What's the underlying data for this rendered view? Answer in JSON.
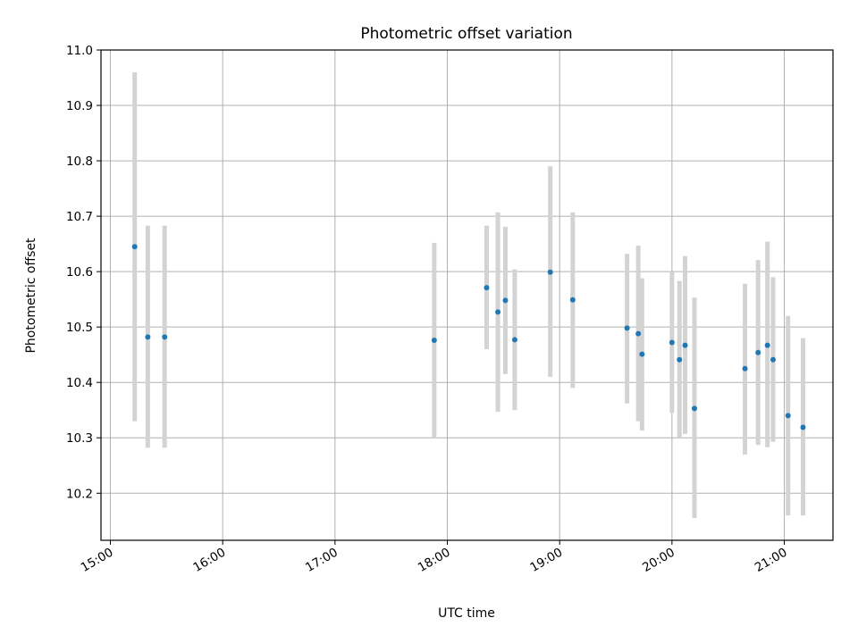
{
  "chart_data": {
    "type": "scatter",
    "title": "Photometric offset variation",
    "xlabel": "UTC time",
    "ylabel": "Photometric offset",
    "x_axis_type": "time",
    "xlim": [
      "14:55",
      "21:26"
    ],
    "ylim": [
      10.115,
      11.0
    ],
    "x_ticks": [
      "15:00",
      "16:00",
      "17:00",
      "18:00",
      "19:00",
      "20:00",
      "21:00"
    ],
    "y_ticks": [
      "10.2",
      "10.3",
      "10.4",
      "10.5",
      "10.6",
      "10.7",
      "10.8",
      "10.9",
      "11.0"
    ],
    "grid": true,
    "errorbar_color": "#d3d3d3",
    "point_color": "#1f77b4",
    "points": [
      {
        "t": "15:13",
        "y": 10.645,
        "ylo": 10.33,
        "yhi": 10.96
      },
      {
        "t": "15:20",
        "y": 10.482,
        "ylo": 10.282,
        "yhi": 10.683
      },
      {
        "t": "15:29",
        "y": 10.482,
        "ylo": 10.282,
        "yhi": 10.683
      },
      {
        "t": "17:53",
        "y": 10.476,
        "ylo": 10.3,
        "yhi": 10.652
      },
      {
        "t": "18:21",
        "y": 10.571,
        "ylo": 10.46,
        "yhi": 10.683
      },
      {
        "t": "18:27",
        "y": 10.527,
        "ylo": 10.347,
        "yhi": 10.707
      },
      {
        "t": "18:31",
        "y": 10.548,
        "ylo": 10.415,
        "yhi": 10.681
      },
      {
        "t": "18:36",
        "y": 10.477,
        "ylo": 10.35,
        "yhi": 10.604
      },
      {
        "t": "18:55",
        "y": 10.599,
        "ylo": 10.41,
        "yhi": 10.79
      },
      {
        "t": "19:07",
        "y": 10.549,
        "ylo": 10.39,
        "yhi": 10.707
      },
      {
        "t": "19:36",
        "y": 10.498,
        "ylo": 10.362,
        "yhi": 10.632
      },
      {
        "t": "19:42",
        "y": 10.488,
        "ylo": 10.33,
        "yhi": 10.647
      },
      {
        "t": "19:44",
        "y": 10.451,
        "ylo": 10.313,
        "yhi": 10.588
      },
      {
        "t": "20:00",
        "y": 10.472,
        "ylo": 10.345,
        "yhi": 10.6
      },
      {
        "t": "20:04",
        "y": 10.441,
        "ylo": 10.3,
        "yhi": 10.583
      },
      {
        "t": "20:07",
        "y": 10.467,
        "ylo": 10.307,
        "yhi": 10.628
      },
      {
        "t": "20:12",
        "y": 10.353,
        "ylo": 10.155,
        "yhi": 10.553
      },
      {
        "t": "20:39",
        "y": 10.425,
        "ylo": 10.27,
        "yhi": 10.578
      },
      {
        "t": "20:46",
        "y": 10.454,
        "ylo": 10.287,
        "yhi": 10.621
      },
      {
        "t": "20:51",
        "y": 10.467,
        "ylo": 10.283,
        "yhi": 10.654
      },
      {
        "t": "20:54",
        "y": 10.441,
        "ylo": 10.293,
        "yhi": 10.59
      },
      {
        "t": "21:02",
        "y": 10.34,
        "ylo": 10.16,
        "yhi": 10.52
      },
      {
        "t": "21:10",
        "y": 10.319,
        "ylo": 10.16,
        "yhi": 10.48
      }
    ]
  }
}
